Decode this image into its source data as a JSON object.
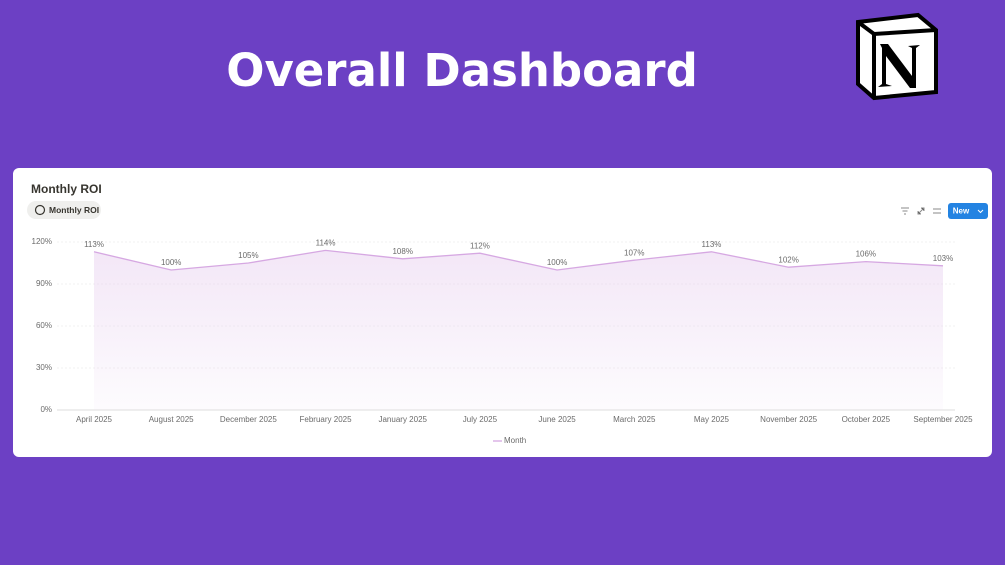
{
  "header": {
    "title": "Overall Dashboard"
  },
  "card": {
    "title": "Monthly ROI",
    "view_tab": "Monthly ROI",
    "new_button": "New"
  },
  "chart_data": {
    "type": "line",
    "categories": [
      "April 2025",
      "August 2025",
      "December 2025",
      "February 2025",
      "January 2025",
      "July 2025",
      "June 2025",
      "March 2025",
      "May 2025",
      "November 2025",
      "October 2025",
      "September 2025"
    ],
    "series": [
      {
        "name": "Month",
        "color": "#d6a8e2",
        "values": [
          113,
          100,
          105,
          114,
          108,
          112,
          100,
          107,
          113,
          102,
          106,
          103
        ],
        "value_labels": [
          "113%",
          "100%",
          "105%",
          "114%",
          "108%",
          "112%",
          "100%",
          "107%",
          "113%",
          "102%",
          "106%",
          "103%"
        ]
      }
    ],
    "ylim": [
      0,
      120
    ],
    "yticks": [
      {
        "value": 0,
        "label": "0%"
      },
      {
        "value": 30,
        "label": "30%"
      },
      {
        "value": 60,
        "label": "60%"
      },
      {
        "value": 90,
        "label": "90%"
      },
      {
        "value": 120,
        "label": "120%"
      }
    ],
    "grid": true,
    "area": true
  }
}
